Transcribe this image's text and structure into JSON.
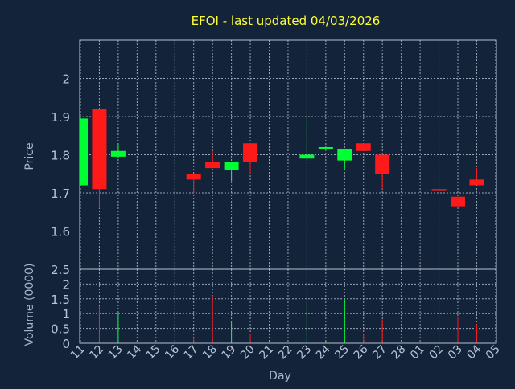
{
  "colors": {
    "background": "#13233a",
    "frame": "#b8c0cc",
    "grid": "#9aa5b4",
    "title": "#ffff33",
    "axis_label": "#a9b6c8",
    "tick_label": "#b7c4d6",
    "up": "#00ff33",
    "down": "#ff1a1a"
  },
  "chart_data": [
    {
      "type": "candlestick",
      "title": "EFOI - last updated 04/03/2026",
      "ylabel": "Price",
      "ylim": [
        1.5,
        2.1
      ],
      "yticks": [
        1.6,
        1.7,
        1.8,
        1.9,
        2.0
      ],
      "ytick_labels": [
        "1.6",
        "1.7",
        "1.8",
        "1.9",
        "2"
      ],
      "grid": true,
      "categories": [
        "11",
        "12",
        "13",
        "14",
        "15",
        "16",
        "17",
        "18",
        "19",
        "20",
        "21",
        "22",
        "23",
        "24",
        "25",
        "26",
        "27",
        "28",
        "01",
        "02",
        "03",
        "04",
        "05"
      ],
      "candles": [
        {
          "day": "11",
          "open": 1.72,
          "high": 1.9,
          "low": 1.72,
          "close": 1.895
        },
        {
          "day": "12",
          "open": 1.92,
          "high": 1.92,
          "low": 1.66,
          "close": 1.71
        },
        {
          "day": "13",
          "open": 1.795,
          "high": 1.83,
          "low": 1.795,
          "close": 1.81
        },
        {
          "day": "17",
          "open": 1.75,
          "high": 1.75,
          "low": 1.7,
          "close": 1.735
        },
        {
          "day": "18",
          "open": 1.78,
          "high": 1.81,
          "low": 1.765,
          "close": 1.765
        },
        {
          "day": "19",
          "open": 1.76,
          "high": 1.78,
          "low": 1.73,
          "close": 1.78
        },
        {
          "day": "20",
          "open": 1.83,
          "high": 1.83,
          "low": 1.75,
          "close": 1.78
        },
        {
          "day": "23",
          "open": 1.79,
          "high": 1.895,
          "low": 1.785,
          "close": 1.8
        },
        {
          "day": "24",
          "open": 1.815,
          "high": 1.82,
          "low": 1.815,
          "close": 1.82
        },
        {
          "day": "25",
          "open": 1.785,
          "high": 1.815,
          "low": 1.76,
          "close": 1.815
        },
        {
          "day": "26",
          "open": 1.83,
          "high": 1.83,
          "low": 1.81,
          "close": 1.81
        },
        {
          "day": "27",
          "open": 1.8,
          "high": 1.8,
          "low": 1.71,
          "close": 1.75
        },
        {
          "day": "02",
          "open": 1.71,
          "high": 1.755,
          "low": 1.705,
          "close": 1.705
        },
        {
          "day": "03",
          "open": 1.69,
          "high": 1.69,
          "low": 1.665,
          "close": 1.665
        },
        {
          "day": "04",
          "open": 1.735,
          "high": 1.765,
          "low": 1.72,
          "close": 1.72
        }
      ]
    },
    {
      "type": "bar",
      "ylabel": "Volume (0000)",
      "xlabel": "Day",
      "ylim": [
        0,
        2.5
      ],
      "yticks": [
        0,
        0.5,
        1,
        1.5,
        2,
        2.5
      ],
      "ytick_labels": [
        "0",
        "0.5",
        "1",
        "1.5",
        "2",
        "2.5"
      ],
      "grid": true,
      "bars": [
        {
          "day": "12",
          "value": 1.25,
          "direction": "down"
        },
        {
          "day": "13",
          "value": 1.0,
          "direction": "up"
        },
        {
          "day": "17",
          "value": 0.2,
          "direction": "down"
        },
        {
          "day": "18",
          "value": 1.6,
          "direction": "down"
        },
        {
          "day": "19",
          "value": 0.75,
          "direction": "up"
        },
        {
          "day": "20",
          "value": 0.3,
          "direction": "down"
        },
        {
          "day": "23",
          "value": 1.4,
          "direction": "up"
        },
        {
          "day": "24",
          "value": 0.1,
          "direction": "up"
        },
        {
          "day": "25",
          "value": 1.5,
          "direction": "up"
        },
        {
          "day": "26",
          "value": 0.3,
          "direction": "down"
        },
        {
          "day": "27",
          "value": 0.8,
          "direction": "down"
        },
        {
          "day": "02",
          "value": 2.4,
          "direction": "down"
        },
        {
          "day": "03",
          "value": 0.9,
          "direction": "down"
        },
        {
          "day": "04",
          "value": 0.65,
          "direction": "down"
        }
      ]
    }
  ]
}
